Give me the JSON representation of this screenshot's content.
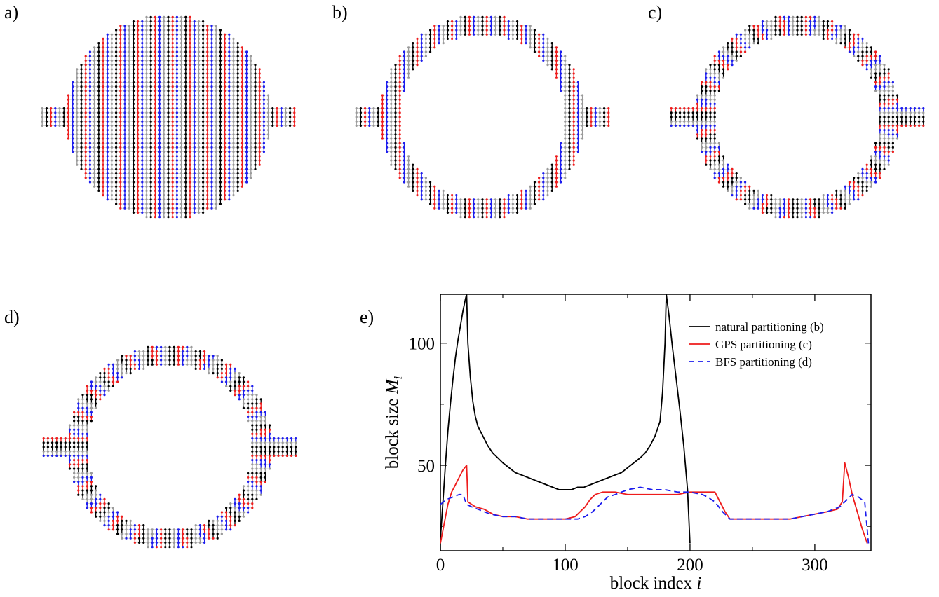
{
  "panels": {
    "a": {
      "label": "a)"
    },
    "b": {
      "label": "b)"
    },
    "c": {
      "label": "c)"
    },
    "d": {
      "label": "d)"
    },
    "e": {
      "label": "e)"
    }
  },
  "colors": {
    "black": "#000000",
    "red": "#ee1c1c",
    "blue": "#1c1cee",
    "gray": "#9a9a9a"
  },
  "chart_data": {
    "type": "line",
    "title": "",
    "xlabel": "block index i",
    "xlabel_main": "block index ",
    "xlabel_var": "i",
    "ylabel": "block size M_i",
    "ylabel_main": "block size ",
    "ylabel_var": "M",
    "ylabel_sub": "i",
    "xlim": [
      0,
      345
    ],
    "ylim": [
      15,
      120
    ],
    "xticks": [
      0,
      100,
      200,
      300
    ],
    "xtick_labels": [
      "0",
      "100",
      "200",
      "300"
    ],
    "yticks": [
      50,
      100
    ],
    "ytick_labels": [
      "50",
      "100"
    ],
    "legend_position": "top-right",
    "series": [
      {
        "name": "natural partitioning (b)",
        "color": "#000000",
        "dash": "solid",
        "points": [
          [
            0,
            20
          ],
          [
            2,
            35
          ],
          [
            4,
            50
          ],
          [
            6,
            64
          ],
          [
            8,
            75
          ],
          [
            10,
            85
          ],
          [
            12,
            94
          ],
          [
            14,
            101
          ],
          [
            16,
            107
          ],
          [
            18,
            113
          ],
          [
            20,
            118
          ],
          [
            21,
            120
          ],
          [
            22,
            100
          ],
          [
            24,
            86
          ],
          [
            26,
            76
          ],
          [
            28,
            70
          ],
          [
            30,
            66
          ],
          [
            34,
            62
          ],
          [
            38,
            58
          ],
          [
            42,
            55
          ],
          [
            46,
            53
          ],
          [
            50,
            51
          ],
          [
            55,
            49
          ],
          [
            60,
            47
          ],
          [
            65,
            46
          ],
          [
            70,
            45
          ],
          [
            75,
            44
          ],
          [
            80,
            43
          ],
          [
            85,
            42
          ],
          [
            90,
            41
          ],
          [
            95,
            40
          ],
          [
            100,
            40
          ],
          [
            105,
            40
          ],
          [
            110,
            41
          ],
          [
            115,
            41
          ],
          [
            120,
            42
          ],
          [
            125,
            43
          ],
          [
            130,
            44
          ],
          [
            135,
            45
          ],
          [
            140,
            46
          ],
          [
            145,
            47
          ],
          [
            150,
            49
          ],
          [
            155,
            51
          ],
          [
            160,
            53
          ],
          [
            164,
            55
          ],
          [
            168,
            58
          ],
          [
            172,
            62
          ],
          [
            176,
            68
          ],
          [
            178,
            80
          ],
          [
            180,
            100
          ],
          [
            181,
            120
          ],
          [
            183,
            112
          ],
          [
            186,
            98
          ],
          [
            189,
            85
          ],
          [
            192,
            72
          ],
          [
            195,
            58
          ],
          [
            198,
            40
          ],
          [
            200,
            18
          ]
        ]
      },
      {
        "name": "GPS partitioning (c)",
        "color": "#ee1c1c",
        "dash": "solid",
        "points": [
          [
            0,
            18
          ],
          [
            3,
            26
          ],
          [
            6,
            34
          ],
          [
            9,
            39
          ],
          [
            12,
            42
          ],
          [
            15,
            45
          ],
          [
            18,
            48
          ],
          [
            21,
            50
          ],
          [
            22,
            35
          ],
          [
            28,
            33
          ],
          [
            35,
            32
          ],
          [
            42,
            30
          ],
          [
            50,
            29
          ],
          [
            60,
            29
          ],
          [
            70,
            28
          ],
          [
            80,
            28
          ],
          [
            90,
            28
          ],
          [
            100,
            28
          ],
          [
            108,
            29
          ],
          [
            112,
            31
          ],
          [
            116,
            33
          ],
          [
            120,
            36
          ],
          [
            124,
            38
          ],
          [
            130,
            39
          ],
          [
            140,
            39
          ],
          [
            150,
            38
          ],
          [
            160,
            38
          ],
          [
            170,
            38
          ],
          [
            180,
            38
          ],
          [
            190,
            38
          ],
          [
            200,
            39
          ],
          [
            210,
            39
          ],
          [
            220,
            39
          ],
          [
            224,
            35
          ],
          [
            228,
            31
          ],
          [
            232,
            28
          ],
          [
            240,
            28
          ],
          [
            250,
            28
          ],
          [
            260,
            28
          ],
          [
            270,
            28
          ],
          [
            280,
            28
          ],
          [
            290,
            29
          ],
          [
            300,
            30
          ],
          [
            310,
            31
          ],
          [
            318,
            32
          ],
          [
            322,
            35
          ],
          [
            324,
            51
          ],
          [
            327,
            45
          ],
          [
            330,
            38
          ],
          [
            334,
            31
          ],
          [
            338,
            24
          ],
          [
            342,
            18
          ]
        ]
      },
      {
        "name": "BFS partitioning (d)",
        "color": "#1c1cee",
        "dash": "dashed",
        "points": [
          [
            0,
            34
          ],
          [
            5,
            36
          ],
          [
            10,
            37
          ],
          [
            15,
            38
          ],
          [
            18,
            38
          ],
          [
            21,
            34
          ],
          [
            25,
            33
          ],
          [
            30,
            32
          ],
          [
            40,
            30
          ],
          [
            50,
            29
          ],
          [
            60,
            29
          ],
          [
            70,
            28
          ],
          [
            80,
            28
          ],
          [
            90,
            28
          ],
          [
            100,
            28
          ],
          [
            110,
            28
          ],
          [
            116,
            29
          ],
          [
            122,
            31
          ],
          [
            128,
            34
          ],
          [
            134,
            37
          ],
          [
            140,
            38
          ],
          [
            150,
            40
          ],
          [
            160,
            41
          ],
          [
            170,
            40
          ],
          [
            180,
            40
          ],
          [
            190,
            39
          ],
          [
            200,
            39
          ],
          [
            210,
            38
          ],
          [
            214,
            37
          ],
          [
            220,
            35
          ],
          [
            226,
            31
          ],
          [
            232,
            28
          ],
          [
            240,
            28
          ],
          [
            250,
            28
          ],
          [
            260,
            28
          ],
          [
            270,
            28
          ],
          [
            280,
            28
          ],
          [
            290,
            29
          ],
          [
            300,
            30
          ],
          [
            310,
            31
          ],
          [
            320,
            33
          ],
          [
            326,
            36
          ],
          [
            330,
            38
          ],
          [
            335,
            37
          ],
          [
            340,
            35
          ],
          [
            343,
            18
          ]
        ]
      }
    ]
  }
}
